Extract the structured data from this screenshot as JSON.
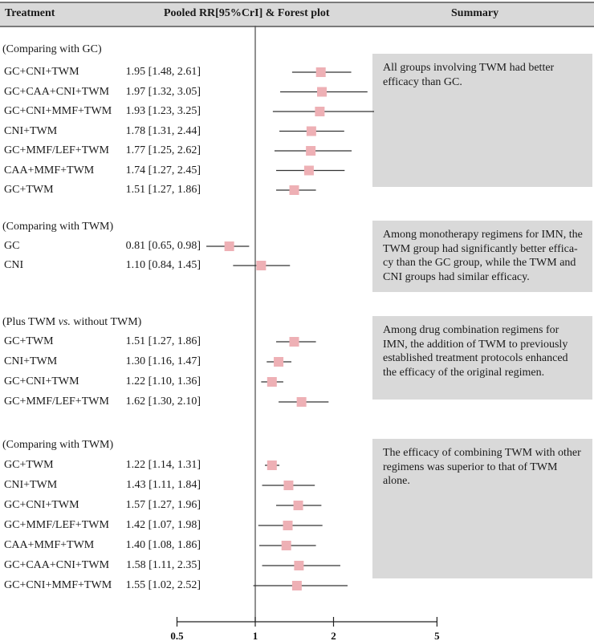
{
  "header": {
    "treatment": "Treatment",
    "pooled": "Pooled RR[95%CrI] & Forest plot",
    "summary": "Summary"
  },
  "colors": {
    "marker": "#eeb0b5",
    "line": "#333333",
    "header_bg": "#d9d9d9",
    "box_bg": "#d9d9d9"
  },
  "chart_data": {
    "type": "forest",
    "xlabel": "",
    "x_scale": "log",
    "reference_line": 1,
    "ticks": [
      "0.5",
      "1",
      "2",
      "5"
    ],
    "groups": [
      {
        "header_pre": "(Comparing with GC)",
        "header_em": "",
        "header_post": "",
        "summary": "All groups involving TWM had better efficacy than GC.",
        "rows": [
          {
            "name": "GC+CNI+TWM",
            "rr": "1.95",
            "lo": "1.48",
            "hi": "2.61"
          },
          {
            "name": "GC+CAA+CNI+TWM",
            "rr": "1.97",
            "lo": "1.32",
            "hi": "3.05"
          },
          {
            "name": "GC+CNI+MMF+TWM",
            "rr": "1.93",
            "lo": "1.23",
            "hi": "3.25"
          },
          {
            "name": "CNI+TWM",
            "rr": "1.78",
            "lo": "1.31",
            "hi": "2.44"
          },
          {
            "name": "GC+MMF/LEF+TWM",
            "rr": "1.77",
            "lo": "1.25",
            "hi": "2.62"
          },
          {
            "name": "CAA+MMF+TWM",
            "rr": "1.74",
            "lo": "1.27",
            "hi": "2.45"
          },
          {
            "name": "GC+TWM",
            "rr": "1.51",
            "lo": "1.27",
            "hi": "1.86"
          }
        ]
      },
      {
        "header_pre": "(Comparing with TWM)",
        "header_em": "",
        "header_post": "",
        "summary": "Among monotherapy regimens for IMN, the TWM group had significantly better effica-cy than the GC group, while the TWM and CNI groups had similar efficacy.",
        "rows": [
          {
            "name": "GC",
            "rr": "0.81",
            "lo": "0.65",
            "hi": "0.98"
          },
          {
            "name": "CNI",
            "rr": "1.10",
            "lo": "0.84",
            "hi": "1.45"
          }
        ]
      },
      {
        "header_pre": "(Plus TWM ",
        "header_em": "vs.",
        "header_post": " without TWM)",
        "summary": "Among drug combination regimens for IMN, the addition of TWM to previously established treatment protocols enhanced the efficacy of the original regimen.",
        "rows": [
          {
            "name": "GC+TWM",
            "rr": "1.51",
            "lo": "1.27",
            "hi": "1.86"
          },
          {
            "name": "CNI+TWM",
            "rr": "1.30",
            "lo": "1.16",
            "hi": "1.47"
          },
          {
            "name": "GC+CNI+TWM",
            "rr": "1.22",
            "lo": "1.10",
            "hi": "1.36"
          },
          {
            "name": "GC+MMF/LEF+TWM",
            "rr": "1.62",
            "lo": "1.30",
            "hi": "2.10"
          }
        ]
      },
      {
        "header_pre": "(Comparing with TWM)",
        "header_em": "",
        "header_post": "",
        "summary": "The efficacy of combining TWM with other regimens was superior to that of TWM alone.",
        "rows": [
          {
            "name": "GC+TWM",
            "rr": "1.22",
            "lo": "1.14",
            "hi": "1.31"
          },
          {
            "name": "CNI+TWM",
            "rr": "1.43",
            "lo": "1.11",
            "hi": "1.84"
          },
          {
            "name": "GC+CNI+TWM",
            "rr": "1.57",
            "lo": "1.27",
            "hi": "1.96"
          },
          {
            "name": "GC+MMF/LEF+TWM",
            "rr": "1.42",
            "lo": "1.07",
            "hi": "1.98"
          },
          {
            "name": "CAA+MMF+TWM",
            "rr": "1.40",
            "lo": "1.08",
            "hi": "1.86"
          },
          {
            "name": "GC+CAA+CNI+TWM",
            "rr": "1.58",
            "lo": "1.11",
            "hi": "2.35"
          },
          {
            "name": "GC+CNI+MMF+TWM",
            "rr": "1.55",
            "lo": "1.02",
            "hi": "2.52"
          }
        ]
      }
    ]
  }
}
